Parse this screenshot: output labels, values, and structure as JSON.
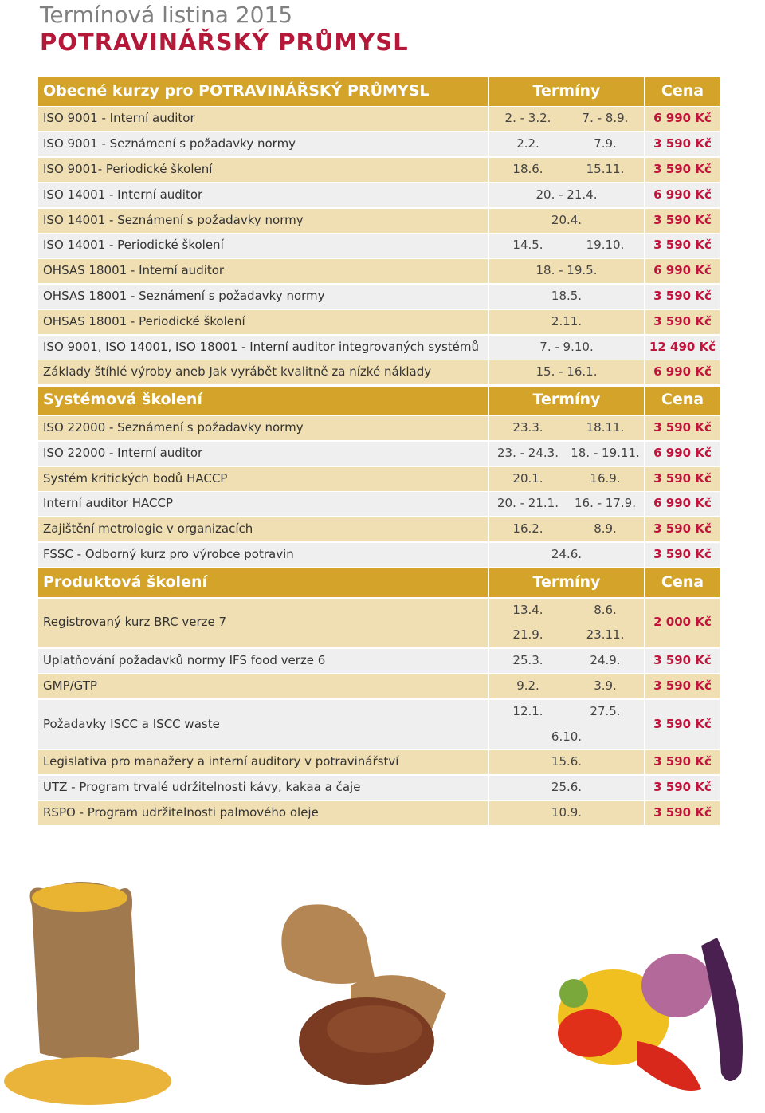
{
  "header": {
    "title": "Termínová listina 2015",
    "subtitle": "POTRAVINÁŘSKÝ PRŮMYSL"
  },
  "sections": [
    {
      "title": "Obecné kurzy pro POTRAVINÁŘSKÝ PRŮMYSL",
      "terms_header": "Termíny",
      "price_header": "Cena",
      "rows": [
        {
          "name": "ISO 9001 - Interní auditor",
          "dates": [
            [
              "2. - 3.2.",
              "7. - 8.9."
            ]
          ],
          "price": "6 990 Kč"
        },
        {
          "name": "ISO 9001 - Seznámení s požadavky normy",
          "dates": [
            [
              "2.2.",
              "7.9."
            ]
          ],
          "price": "3 590 Kč"
        },
        {
          "name": "ISO 9001- Periodické školení",
          "dates": [
            [
              "18.6.",
              "15.11."
            ]
          ],
          "price": "3 590 Kč"
        },
        {
          "name": "ISO 14001 - Interní auditor",
          "dates": [
            [
              "20. - 21.4."
            ]
          ],
          "price": "6 990 Kč"
        },
        {
          "name": "ISO 14001 - Seznámení s požadavky normy",
          "dates": [
            [
              "20.4."
            ]
          ],
          "price": "3 590 Kč"
        },
        {
          "name": "ISO 14001 - Periodické školení",
          "dates": [
            [
              "14.5.",
              "19.10."
            ]
          ],
          "price": "3 590 Kč"
        },
        {
          "name": "OHSAS 18001 - Interní auditor",
          "dates": [
            [
              "18. - 19.5."
            ]
          ],
          "price": "6 990 Kč"
        },
        {
          "name": "OHSAS 18001 - Seznámení s požadavky normy",
          "dates": [
            [
              "18.5."
            ]
          ],
          "price": "3 590 Kč"
        },
        {
          "name": "OHSAS 18001 - Periodické školení",
          "dates": [
            [
              "2.11."
            ]
          ],
          "price": "3 590 Kč"
        },
        {
          "name": "ISO 9001, ISO 14001, ISO 18001 - Interní auditor integrovaných systémů",
          "dates": [
            [
              "7. - 9.10."
            ]
          ],
          "price": "12 490 Kč"
        },
        {
          "name": "Základy štíhlé výroby aneb Jak vyrábět kvalitně za nízké náklady",
          "dates": [
            [
              "15. - 16.1."
            ]
          ],
          "price": "6 990 Kč"
        }
      ]
    },
    {
      "title": "Systémová školení",
      "terms_header": "Termíny",
      "price_header": "Cena",
      "rows": [
        {
          "name": "ISO 22000 - Seznámení s požadavky normy",
          "dates": [
            [
              "23.3.",
              "18.11."
            ]
          ],
          "price": "3 590 Kč"
        },
        {
          "name": "ISO 22000 - Interní auditor",
          "dates": [
            [
              "23. - 24.3.",
              "18. - 19.11."
            ]
          ],
          "price": "6 990 Kč"
        },
        {
          "name": "Systém kritických bodů HACCP",
          "dates": [
            [
              "20.1.",
              "16.9."
            ]
          ],
          "price": "3 590 Kč"
        },
        {
          "name": "Interní auditor HACCP",
          "dates": [
            [
              "20. - 21.1.",
              "16. - 17.9."
            ]
          ],
          "price": "6 990 Kč"
        },
        {
          "name": "Zajištění metrologie v organizacích",
          "dates": [
            [
              "16.2.",
              "8.9."
            ]
          ],
          "price": "3 590 Kč"
        },
        {
          "name": "FSSC - Odborný kurz pro výrobce potravin",
          "dates": [
            [
              "24.6."
            ]
          ],
          "price": "3 590 Kč"
        }
      ]
    },
    {
      "title": "Produktová školení",
      "terms_header": "Termíny",
      "price_header": "Cena",
      "rows": [
        {
          "name": "Registrovaný kurz BRC verze 7",
          "dates": [
            [
              "13.4.",
              "8.6."
            ],
            [
              "21.9.",
              "23.11."
            ]
          ],
          "price": "2 000 Kč"
        },
        {
          "name": "Uplatňování požadavků normy IFS food verze 6",
          "dates": [
            [
              "25.3.",
              "24.9."
            ]
          ],
          "price": "3 590 Kč"
        },
        {
          "name": "GMP/GTP",
          "dates": [
            [
              "9.2.",
              "3.9."
            ]
          ],
          "price": "3 590 Kč"
        },
        {
          "name": "Požadavky ISCC a ISCC waste",
          "dates": [
            [
              "12.1.",
              "27.5."
            ],
            [
              "6.10."
            ]
          ],
          "price": "3 590 Kč"
        },
        {
          "name": "Legislativa pro manažery a interní auditory v potravinářství",
          "dates": [
            [
              "15.6."
            ]
          ],
          "price": "3 590 Kč"
        },
        {
          "name": "UTZ - Program trvalé udržitelnosti kávy, kakaa a čaje",
          "dates": [
            [
              "25.6."
            ]
          ],
          "price": "3 590 Kč"
        },
        {
          "name": "RSPO - Program udržitelnosti palmového oleje",
          "dates": [
            [
              "10.9."
            ]
          ],
          "price": "3 590 Kč"
        }
      ]
    }
  ]
}
